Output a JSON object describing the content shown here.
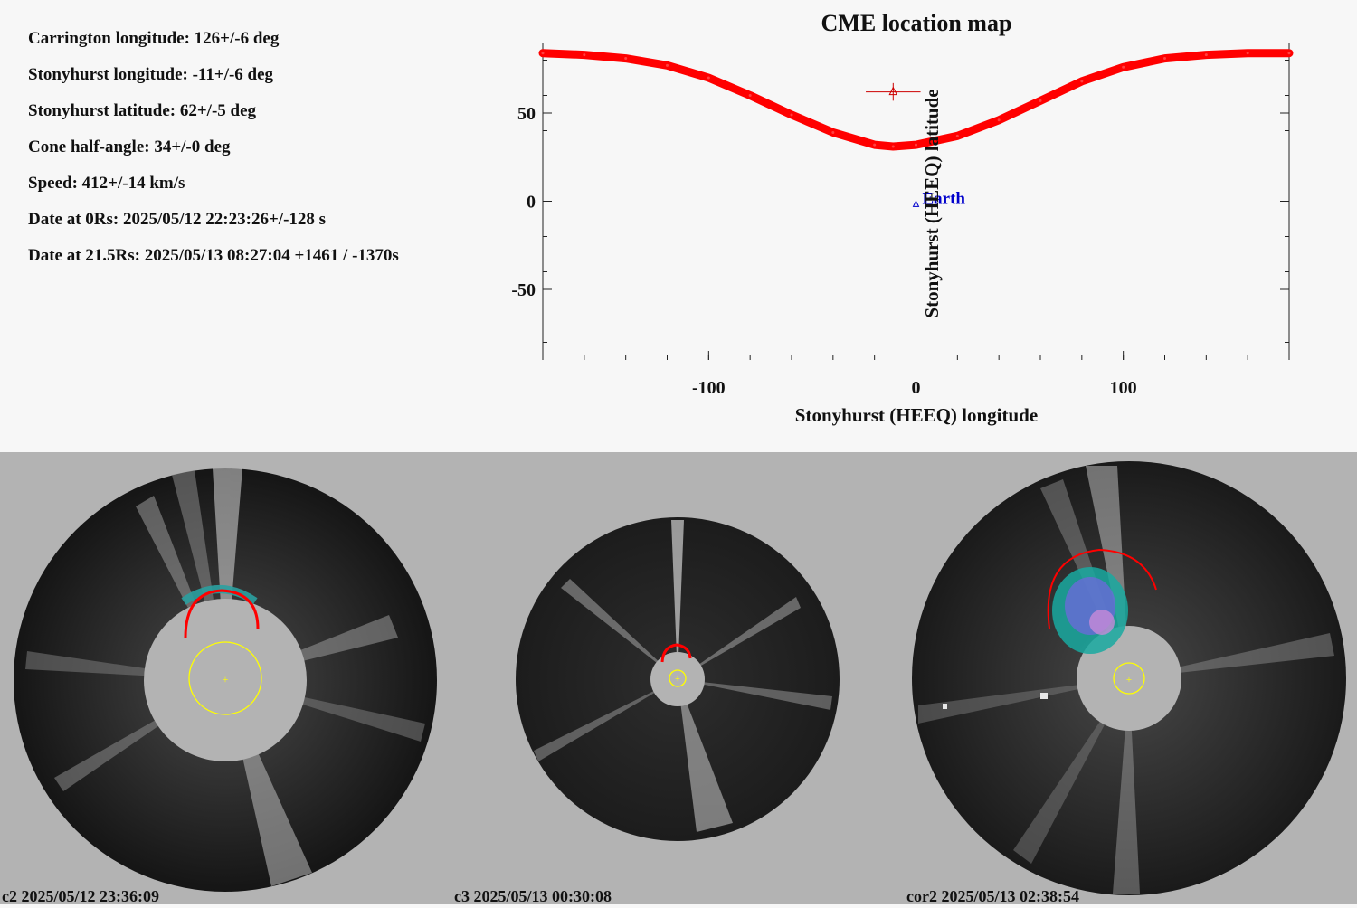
{
  "parameters": [
    "Carrington longitude: 126+/-6 deg",
    "Stonyhurst longitude: -11+/-6 deg",
    "Stonyhurst latitude: 62+/-5 deg",
    "Cone half-angle: 34+/-0 deg",
    "Speed: 412+/-14 km/s",
    "Date at 0Rs: 2025/05/12 22:23:26+/-128 s",
    "Date at 21.5Rs: 2025/05/13 08:27:04 +1461 / -1370s"
  ],
  "chart_data": {
    "type": "scatter",
    "title": "CME location map",
    "xlabel": "Stonyhurst (HEEQ) longitude",
    "ylabel": "Stonyhurst (HEEQ) latitude",
    "xlim": [
      -180,
      180
    ],
    "ylim": [
      -90,
      90
    ],
    "xticks": [
      -100,
      0,
      100
    ],
    "yticks": [
      -50,
      0,
      50
    ],
    "series": [
      {
        "name": "",
        "kind": "red-curve",
        "color": "#ff0000",
        "x": [
          -180,
          -160,
          -140,
          -120,
          -100,
          -80,
          -60,
          -40,
          -20,
          -11,
          0,
          20,
          40,
          60,
          80,
          100,
          120,
          140,
          160,
          180
        ],
        "y": [
          84,
          83,
          81,
          77,
          70,
          60,
          49,
          39,
          32,
          31,
          32,
          37,
          46,
          57,
          68,
          76,
          81,
          83,
          84,
          84
        ]
      }
    ],
    "cme_point": {
      "x": -11,
      "y": 62,
      "x_err": 6,
      "y_err": 5,
      "color": "#cc0000"
    },
    "earth_point": {
      "x": 0,
      "y": -2,
      "label": "Earth",
      "color": "#0000cc"
    }
  },
  "panels": [
    {
      "caption": "c2 2025/05/12 23:36:09"
    },
    {
      "caption": "c3 2025/05/13 00:30:08"
    },
    {
      "caption": "cor2 2025/05/13 02:38:54"
    }
  ],
  "colors": {
    "sun_circle": "#ffff00",
    "cme_fit": "#ff0000"
  }
}
